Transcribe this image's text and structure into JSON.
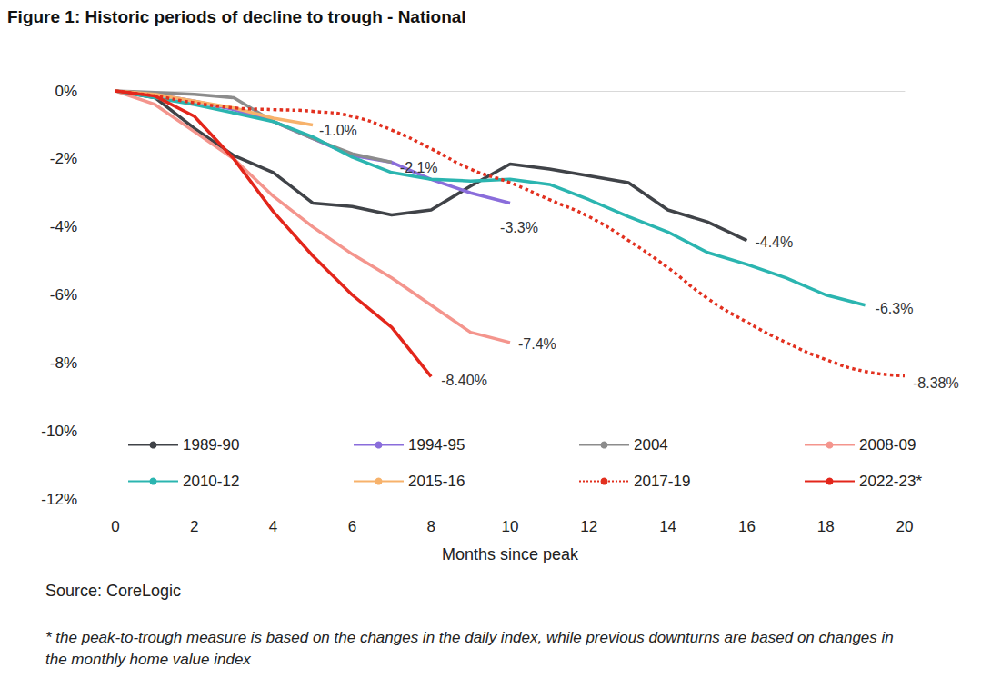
{
  "chart_data": {
    "type": "line",
    "title": "Figure 1: Historic periods of decline to trough - National",
    "x_label": "Months since peak",
    "source": "Source: CoreLogic",
    "note": "* the peak-to-trough measure is based on the changes in the daily index, while previous downturns are based on changes in the monthly home value index",
    "xlim": [
      0,
      20
    ],
    "xticks": [
      0,
      2,
      4,
      6,
      8,
      10,
      12,
      14,
      16,
      18,
      20
    ],
    "ylim": [
      -12,
      0
    ],
    "yticks": [
      {
        "value": -12,
        "label": "-12%"
      },
      {
        "value": -10,
        "label": "-10%"
      },
      {
        "value": -8,
        "label": "-8%"
      },
      {
        "value": -6,
        "label": "-6%"
      },
      {
        "value": -4,
        "label": "-4%"
      },
      {
        "value": -2,
        "label": "-2%"
      },
      {
        "value": 0,
        "label": "0%"
      }
    ],
    "grid": false,
    "legend": "bottom",
    "series": [
      {
        "name": "1989-90",
        "color": "#404348",
        "line_style": "solid",
        "x": [
          0,
          1,
          2,
          3,
          4,
          5,
          6,
          7,
          8,
          9,
          10,
          11,
          12,
          13,
          14,
          15,
          16
        ],
        "values": [
          0,
          -0.2,
          -1.1,
          -1.9,
          -2.4,
          -3.3,
          -3.4,
          -3.65,
          -3.5,
          -2.8,
          -2.15,
          -2.3,
          -2.5,
          -2.7,
          -3.5,
          -3.85,
          -4.4
        ],
        "value_labels": [
          null,
          null,
          null,
          null,
          null,
          null,
          null,
          null,
          null,
          null,
          null,
          null,
          null,
          null,
          null,
          null,
          "-4.4%"
        ]
      },
      {
        "name": "1994-95",
        "color": "#8a6ddb",
        "line_style": "solid",
        "x": [
          0,
          1,
          2,
          3,
          4,
          5,
          6,
          7,
          8,
          9,
          10
        ],
        "values": [
          0,
          -0.1,
          -0.3,
          -0.55,
          -0.9,
          -1.4,
          -1.9,
          -2.1,
          -2.6,
          -3.0,
          -3.3
        ],
        "value_labels": [
          null,
          null,
          null,
          null,
          null,
          null,
          null,
          null,
          null,
          null,
          "-3.3%"
        ]
      },
      {
        "name": "2004",
        "color": "#8c8c8c",
        "line_style": "solid",
        "x": [
          0,
          1,
          2,
          3,
          4,
          5,
          6,
          7
        ],
        "values": [
          0,
          -0.05,
          -0.1,
          -0.2,
          -0.9,
          -1.4,
          -1.85,
          -2.1
        ],
        "value_labels": [
          null,
          null,
          null,
          null,
          null,
          null,
          null,
          "-2.1%"
        ]
      },
      {
        "name": "2008-09",
        "color": "#f4958d",
        "line_style": "solid",
        "x": [
          0,
          1,
          2,
          3,
          4,
          5,
          6,
          7,
          8,
          9,
          10
        ],
        "values": [
          0,
          -0.4,
          -1.2,
          -2.0,
          -3.1,
          -4.0,
          -4.8,
          -5.5,
          -6.3,
          -7.1,
          -7.4
        ],
        "value_labels": [
          null,
          null,
          null,
          null,
          null,
          null,
          null,
          null,
          null,
          null,
          "-7.4%"
        ]
      },
      {
        "name": "2010-12",
        "color": "#2bb5b0",
        "line_style": "solid",
        "x": [
          0,
          1,
          2,
          3,
          4,
          5,
          6,
          7,
          8,
          9,
          10,
          11,
          12,
          13,
          14,
          15,
          16,
          17,
          18,
          19
        ],
        "values": [
          0,
          -0.2,
          -0.4,
          -0.65,
          -0.9,
          -1.35,
          -1.95,
          -2.4,
          -2.6,
          -2.65,
          -2.6,
          -2.75,
          -3.2,
          -3.7,
          -4.15,
          -4.75,
          -5.1,
          -5.5,
          -6.0,
          -6.3
        ],
        "value_labels": [
          null,
          null,
          null,
          null,
          null,
          null,
          null,
          null,
          null,
          null,
          null,
          null,
          null,
          null,
          null,
          null,
          null,
          null,
          null,
          "-6.3%"
        ]
      },
      {
        "name": "2015-16",
        "color": "#f7b26b",
        "line_style": "solid",
        "x": [
          0,
          1,
          2,
          3,
          4,
          5
        ],
        "values": [
          0,
          -0.1,
          -0.3,
          -0.5,
          -0.8,
          -1.0
        ],
        "value_labels": [
          null,
          null,
          null,
          null,
          null,
          "-1.0%"
        ]
      },
      {
        "name": "2017-19",
        "color": "#e2301f",
        "line_style": "dotted",
        "x": [
          0,
          1,
          2,
          3,
          4,
          5,
          6,
          7,
          8,
          9,
          10,
          11,
          12,
          13,
          14,
          15,
          16,
          17,
          18,
          19,
          20
        ],
        "values": [
          0,
          -0.15,
          -0.35,
          -0.5,
          -0.55,
          -0.6,
          -0.75,
          -1.15,
          -1.7,
          -2.3,
          -2.7,
          -3.2,
          -3.7,
          -4.4,
          -5.2,
          -6.1,
          -6.8,
          -7.4,
          -7.9,
          -8.25,
          -8.38
        ],
        "value_labels": [
          null,
          null,
          null,
          null,
          null,
          null,
          null,
          null,
          null,
          null,
          null,
          null,
          null,
          null,
          null,
          null,
          null,
          null,
          null,
          null,
          "-8.38%"
        ]
      },
      {
        "name": "2022-23*",
        "color": "#e3261b",
        "line_style": "solid",
        "x": [
          0,
          1,
          2,
          3,
          4,
          5,
          6,
          7,
          8
        ],
        "values": [
          0,
          -0.15,
          -0.75,
          -2.0,
          -3.55,
          -4.85,
          -6.0,
          -6.95,
          -8.4
        ],
        "value_labels": [
          null,
          null,
          null,
          null,
          null,
          null,
          null,
          null,
          "-8.40%"
        ]
      }
    ]
  }
}
